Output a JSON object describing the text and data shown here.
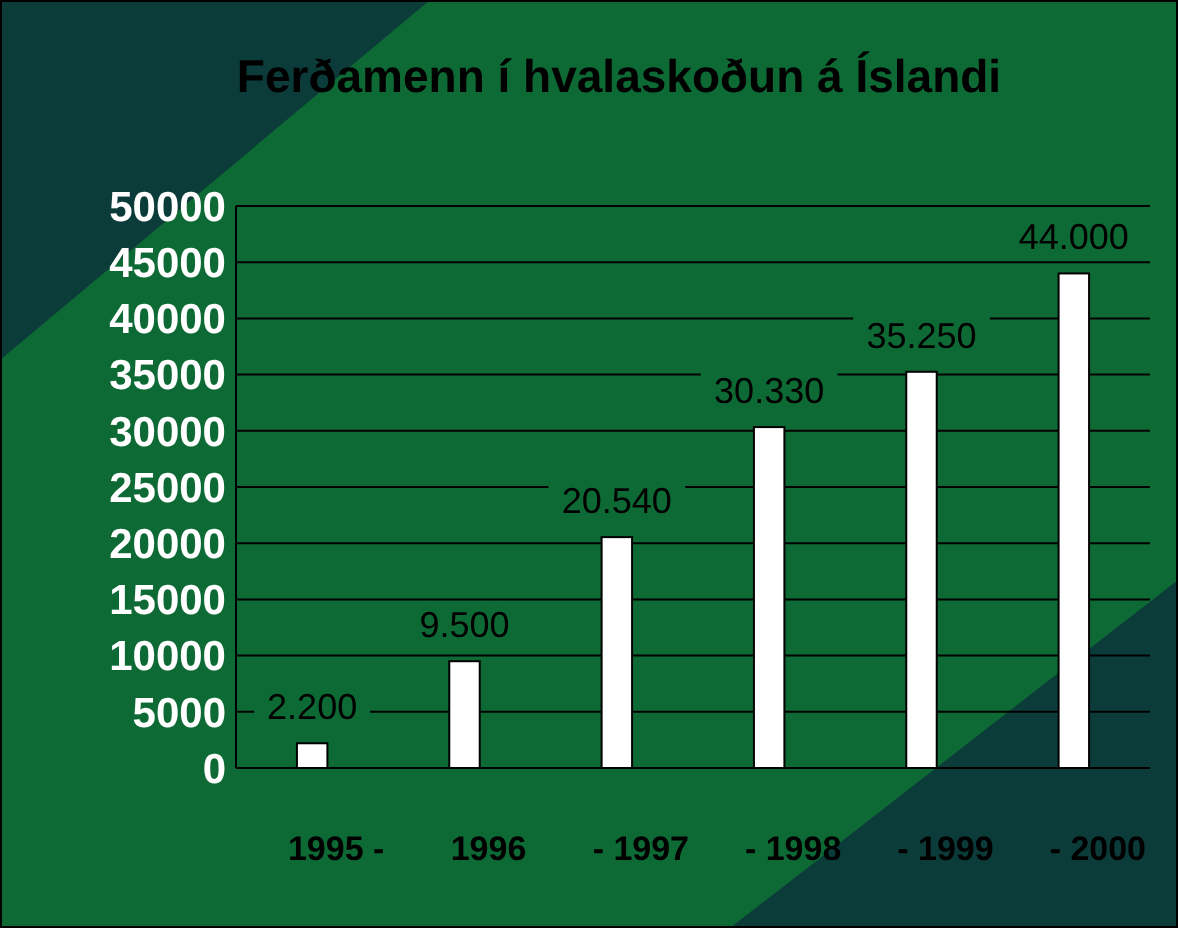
{
  "chart_data": {
    "type": "bar",
    "title": "Ferðamenn í hvalaskoðun á Íslandi",
    "categories": [
      "1995 -",
      "1996",
      "- 1997",
      "- 1998",
      "- 1999",
      "- 2000"
    ],
    "values": [
      2200,
      9500,
      20540,
      30330,
      35250,
      44000
    ],
    "value_labels": [
      "2.200",
      "9.500",
      "20.540",
      "30.330",
      "35.250",
      "44.000"
    ],
    "color": "#ffffff",
    "ylim": [
      0,
      50000
    ],
    "yticks": [
      0,
      5000,
      10000,
      15000,
      20000,
      25000,
      30000,
      35000,
      40000,
      45000,
      50000
    ],
    "grid": "y"
  }
}
